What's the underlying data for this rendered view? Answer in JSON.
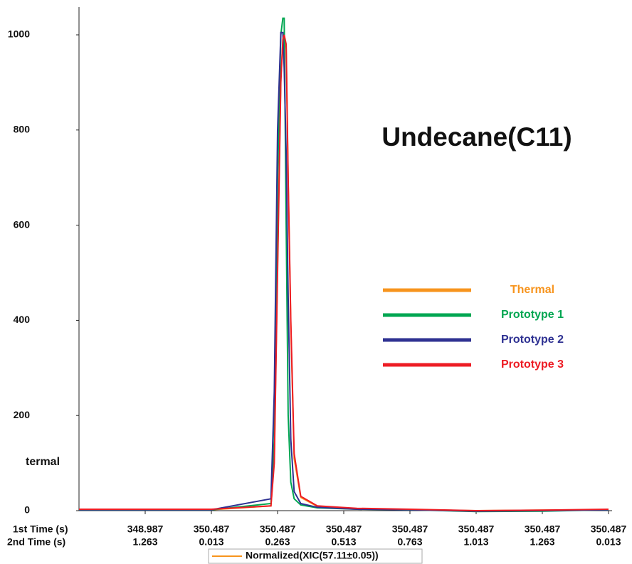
{
  "chart_data": {
    "type": "line",
    "title": "Undecane(C11)",
    "y_label": "termal",
    "x_row_titles": [
      "1st Time (s)",
      "2nd Time (s)"
    ],
    "x": [
      0,
      2.0,
      2.9,
      2.95,
      3.0,
      3.05,
      3.08,
      3.1,
      3.13,
      3.16,
      3.2,
      3.25,
      3.35,
      3.6,
      4.2,
      5,
      6,
      7,
      8
    ],
    "xlim": [
      0,
      8
    ],
    "xticks": [
      {
        "value": 1,
        "label": [
          "348.987",
          "1.263"
        ]
      },
      {
        "value": 2,
        "label": [
          "350.487",
          "0.013"
        ]
      },
      {
        "value": 3,
        "label": [
          "350.487",
          "0.263"
        ]
      },
      {
        "value": 4,
        "label": [
          "350.487",
          "0.513"
        ]
      },
      {
        "value": 5,
        "label": [
          "350.487",
          "0.763"
        ]
      },
      {
        "value": 6,
        "label": [
          "350.487",
          "1.013"
        ]
      },
      {
        "value": 7,
        "label": [
          "350.487",
          "1.263"
        ]
      },
      {
        "value": 8,
        "label": [
          "350.487",
          "0.013"
        ]
      }
    ],
    "ylim": [
      0,
      1050
    ],
    "yticks": [
      0,
      200,
      400,
      600,
      800,
      1000
    ],
    "legend": "right",
    "series": [
      {
        "name": "Thermal",
        "color": "#f7941d",
        "values": [
          2,
          2,
          10,
          110,
          520,
          910,
          985,
          995,
          970,
          690,
          390,
          110,
          28,
          9,
          4,
          2,
          0,
          1,
          2
        ]
      },
      {
        "name": "Prototype 1",
        "color": "#00a651",
        "values": [
          2,
          2,
          15,
          150,
          700,
          1000,
          1035,
          1035,
          600,
          200,
          60,
          25,
          12,
          6,
          3,
          2,
          -2,
          -1,
          2
        ]
      },
      {
        "name": "Prototype 2",
        "color": "#2e3192",
        "values": [
          2,
          2,
          25,
          250,
          800,
          1005,
          1005,
          930,
          750,
          450,
          150,
          40,
          15,
          7,
          3,
          2,
          -1,
          0,
          2
        ]
      },
      {
        "name": "Prototype 3",
        "color": "#ed1c24",
        "values": [
          3,
          3,
          10,
          100,
          500,
          900,
          990,
          1000,
          980,
          700,
          400,
          120,
          30,
          10,
          5,
          3,
          0,
          1,
          3
        ]
      }
    ],
    "bottom_legend": {
      "label": "Normalized(XIC(57.11±0.05))",
      "color": "#f7941d"
    }
  }
}
